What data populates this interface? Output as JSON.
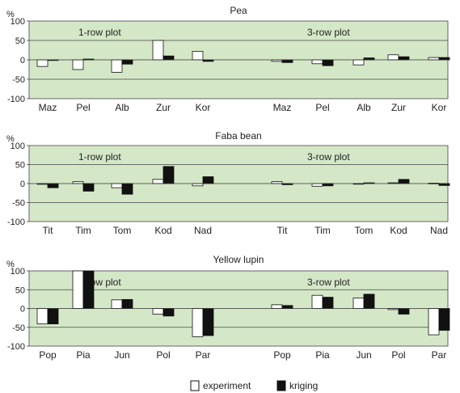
{
  "chart_data": [
    {
      "type": "bar",
      "title": "Pea",
      "ylabel": "%",
      "ylim": [
        -100,
        100
      ],
      "yticks": [
        100,
        50,
        0,
        -50,
        -100
      ],
      "background_color": "#d4e8c8",
      "group_labels": [
        "1-row plot",
        "3-row plot"
      ],
      "categories": [
        "Maz",
        "Pel",
        "Alb",
        "Zur",
        "Kor",
        "Maz",
        "Pel",
        "Alb",
        "Zur",
        "Kor"
      ],
      "series": [
        {
          "name": "experiment",
          "color": "#ffffff",
          "values": [
            -17,
            -25,
            -32,
            50,
            22,
            -4,
            -10,
            -13,
            13,
            6
          ]
        },
        {
          "name": "kriging",
          "color": "#111111",
          "values": [
            0,
            2,
            -11,
            10,
            -4,
            -7,
            -15,
            5,
            8,
            6
          ]
        }
      ]
    },
    {
      "type": "bar",
      "title": "Faba bean",
      "ylabel": "%",
      "ylim": [
        -100,
        100
      ],
      "yticks": [
        100,
        50,
        0,
        -50,
        -100
      ],
      "background_color": "#d4e8c8",
      "group_labels": [
        "1-row plot",
        "3-row plot"
      ],
      "categories": [
        "Tit",
        "Tim",
        "Tom",
        "Kod",
        "Nad",
        "Tit",
        "Tim",
        "Tom",
        "Kod",
        "Nad"
      ],
      "series": [
        {
          "name": "experiment",
          "color": "#ffffff",
          "values": [
            -2,
            5,
            -11,
            11,
            -6,
            5,
            -7,
            0,
            2,
            1
          ]
        },
        {
          "name": "kriging",
          "color": "#111111",
          "values": [
            -11,
            -20,
            -28,
            45,
            18,
            -3,
            -6,
            2,
            11,
            -5
          ]
        }
      ]
    },
    {
      "type": "bar",
      "title": "Yellow lupin",
      "ylabel": "%",
      "ylim": [
        -100,
        100
      ],
      "yticks": [
        100,
        50,
        0,
        -50,
        -100
      ],
      "background_color": "#d4e8c8",
      "group_labels": [
        "1-row plot",
        "3-row plot"
      ],
      "categories": [
        "Pop",
        "Pia",
        "Jun",
        "Pol",
        "Par",
        "Pop",
        "Pia",
        "Jun",
        "Pol",
        "Par"
      ],
      "series": [
        {
          "name": "experiment",
          "color": "#ffffff",
          "values": [
            -41,
            105,
            23,
            -15,
            -75,
            10,
            35,
            28,
            -3,
            -70
          ]
        },
        {
          "name": "kriging",
          "color": "#111111",
          "values": [
            -41,
            103,
            24,
            -20,
            -72,
            8,
            30,
            38,
            -15,
            -58
          ]
        }
      ]
    }
  ],
  "legend": {
    "placement": "bottom-center",
    "items": [
      {
        "label": "experiment",
        "color": "#ffffff"
      },
      {
        "label": "kriging",
        "color": "#111111"
      }
    ]
  }
}
